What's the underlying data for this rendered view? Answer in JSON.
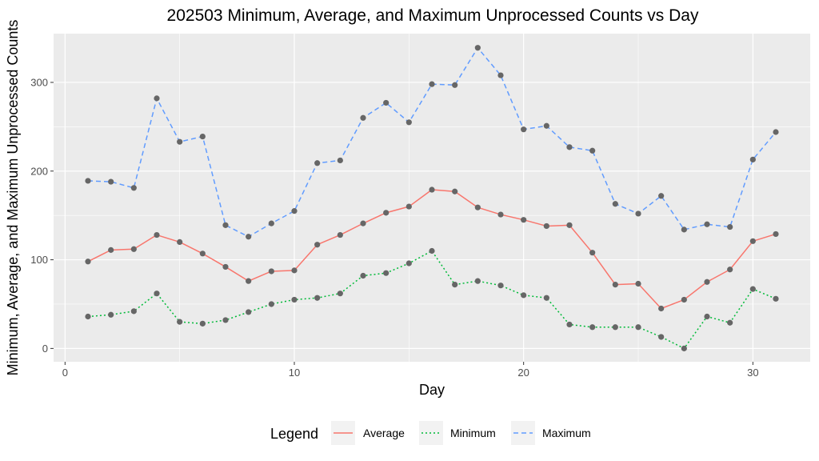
{
  "chart_data": {
    "type": "line",
    "title": "202503 Minimum, Average, and Maximum Unprocessed Counts vs Day",
    "xlabel": "Day",
    "ylabel": "Minimum, Average, and Maximum Unprocessed Counts",
    "xlim": [
      -0.5,
      32.5
    ],
    "ylim": [
      -15,
      355
    ],
    "x_ticks": [
      0,
      10,
      20,
      30
    ],
    "y_ticks": [
      0,
      100,
      200,
      300
    ],
    "grid": true,
    "point_color": "#666666",
    "panel_color": "#ebebeb",
    "grid_color": "#ffffff",
    "legend": {
      "title": "Legend",
      "position": "bottom"
    },
    "x": [
      1,
      2,
      3,
      4,
      5,
      6,
      7,
      8,
      9,
      10,
      11,
      12,
      13,
      14,
      15,
      16,
      17,
      18,
      19,
      20,
      21,
      22,
      23,
      24,
      25,
      26,
      27,
      28,
      29,
      30,
      31
    ],
    "series": [
      {
        "name": "Average",
        "color": "#f8766d",
        "dash": "solid",
        "values": [
          98,
          111,
          112,
          128,
          120,
          107,
          92,
          76,
          87,
          88,
          117,
          128,
          141,
          153,
          160,
          179,
          177,
          159,
          151,
          145,
          138,
          139,
          108,
          72,
          73,
          45,
          55,
          75,
          89,
          121,
          129
        ]
      },
      {
        "name": "Minimum",
        "color": "#00ba38",
        "dash": "dotted",
        "values": [
          36,
          38,
          42,
          62,
          30,
          28,
          32,
          41,
          50,
          55,
          57,
          62,
          82,
          85,
          96,
          110,
          72,
          76,
          71,
          60,
          57,
          27,
          24,
          24,
          24,
          13,
          0,
          36,
          29,
          67,
          56
        ]
      },
      {
        "name": "Maximum",
        "color": "#619cff",
        "dash": "dashed",
        "values": [
          189,
          188,
          181,
          282,
          233,
          239,
          139,
          126,
          141,
          155,
          209,
          212,
          260,
          277,
          255,
          298,
          297,
          339,
          308,
          247,
          251,
          227,
          223,
          163,
          152,
          172,
          134,
          140,
          137,
          213,
          244
        ]
      }
    ]
  }
}
